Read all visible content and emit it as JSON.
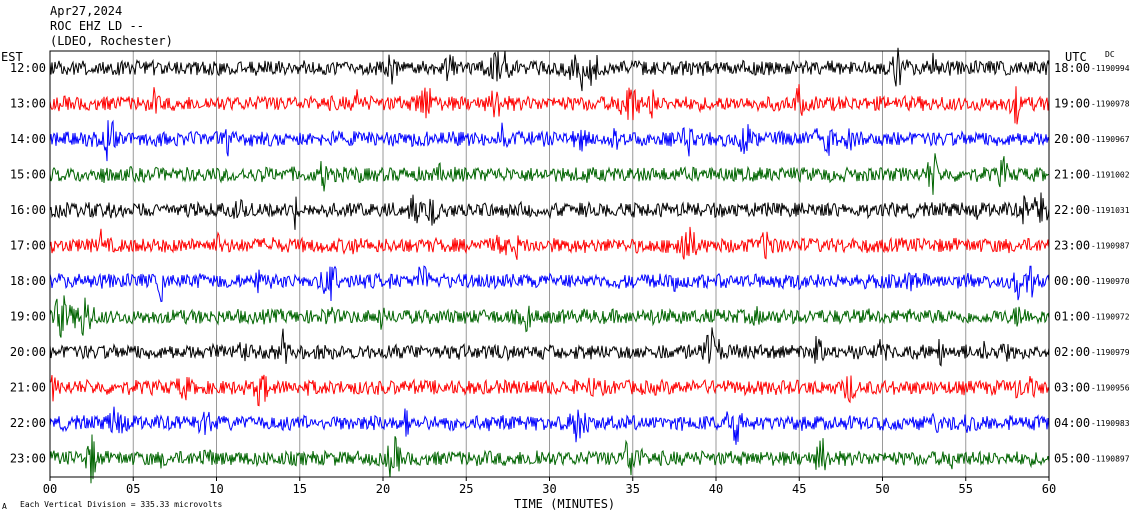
{
  "header": {
    "date": "Apr27,2024",
    "station": "ROC EHZ LD --",
    "network": "(LDEO, Rochester)"
  },
  "left_timezone": "EST",
  "right_timezone": "UTC",
  "dc_label": "DC",
  "footer": {
    "scale_note": "Each Vertical Division =  335.33 microvolts"
  },
  "chart_data": {
    "type": "line",
    "title": "",
    "xlabel": "TIME (MINUTES)",
    "ylabel": "",
    "xlim": [
      0,
      60
    ],
    "x_ticks": [
      "00",
      "05",
      "10",
      "15",
      "20",
      "25",
      "30",
      "35",
      "40",
      "45",
      "50",
      "55",
      "60"
    ],
    "x_tick_values": [
      0,
      5,
      10,
      15,
      20,
      25,
      30,
      35,
      40,
      45,
      50,
      55,
      60
    ],
    "grid": true,
    "trace_colors": [
      "#000000",
      "#ff0000",
      "#0000ff",
      "#006400"
    ],
    "rows": [
      {
        "local": "12:00",
        "utc": "18:00",
        "dc": "-1190994"
      },
      {
        "local": "13:00",
        "utc": "19:00",
        "dc": "-1190978"
      },
      {
        "local": "14:00",
        "utc": "20:00",
        "dc": "-1190967"
      },
      {
        "local": "15:00",
        "utc": "21:00",
        "dc": "-1191002"
      },
      {
        "local": "16:00",
        "utc": "22:00",
        "dc": "-1191031"
      },
      {
        "local": "17:00",
        "utc": "23:00",
        "dc": "-1190987"
      },
      {
        "local": "18:00",
        "utc": "00:00",
        "dc": "-1190970"
      },
      {
        "local": "19:00",
        "utc": "01:00",
        "dc": "-1190972"
      },
      {
        "local": "20:00",
        "utc": "02:00",
        "dc": "-1190979"
      },
      {
        "local": "21:00",
        "utc": "03:00",
        "dc": "-1190956"
      },
      {
        "local": "22:00",
        "utc": "04:00",
        "dc": "-1190983"
      },
      {
        "local": "23:00",
        "utc": "05:00",
        "dc": "-1190897"
      }
    ]
  }
}
